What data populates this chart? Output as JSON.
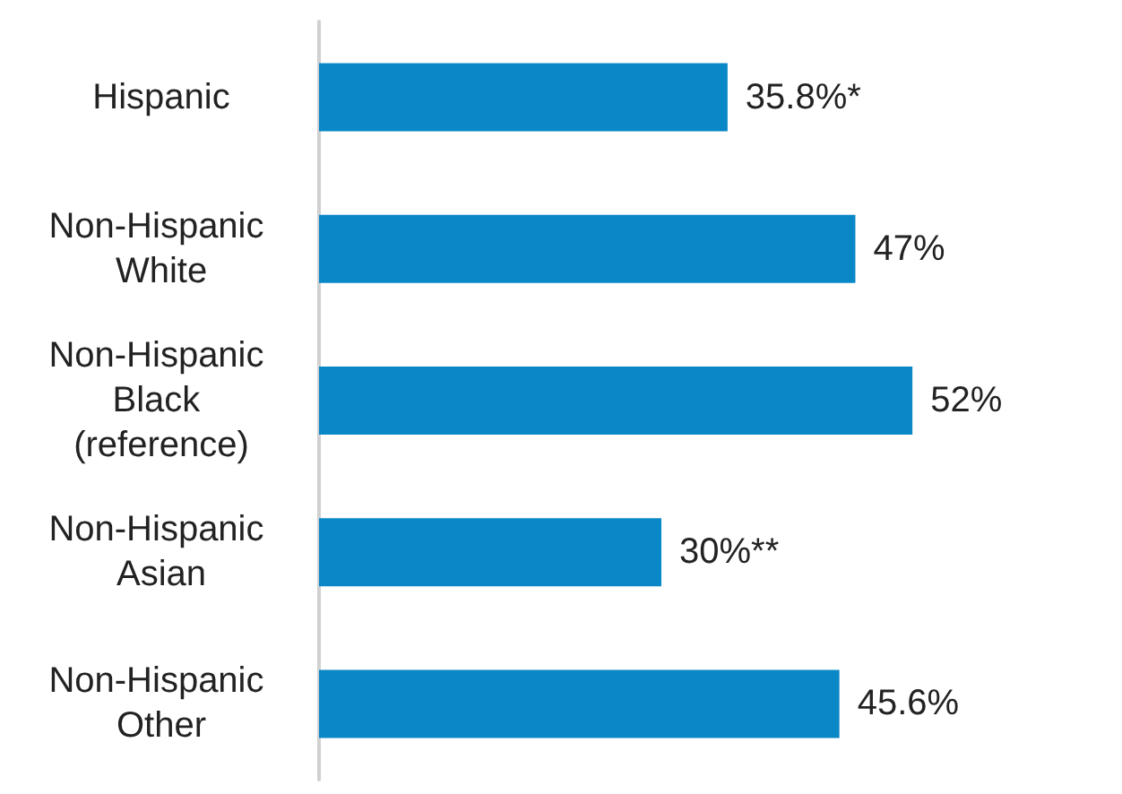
{
  "chart_data": {
    "type": "bar",
    "orientation": "horizontal",
    "categories": [
      "Hispanic",
      "Non-Hispanic White",
      "Non-Hispanic Black (reference)",
      "Non-Hispanic Asian",
      "Non-Hispanic Other"
    ],
    "values": [
      35.8,
      47,
      52,
      30,
      45.6
    ],
    "value_labels": [
      "35.8%*",
      "47%",
      "52%",
      "30%**",
      "45.6%"
    ],
    "color": "#0a87c6"
  }
}
